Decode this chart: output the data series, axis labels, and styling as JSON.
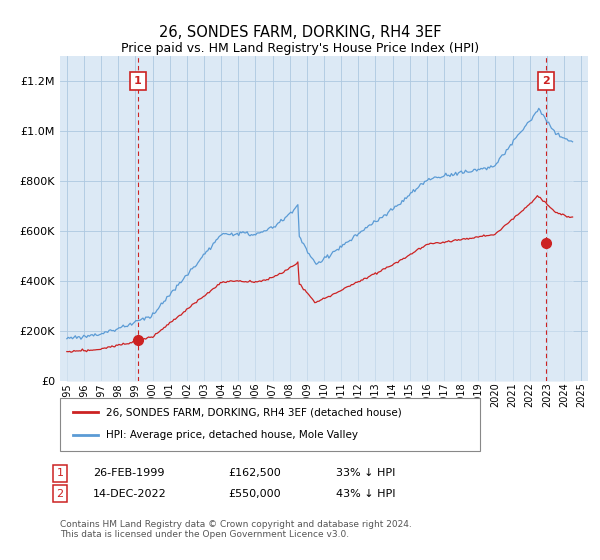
{
  "title": "26, SONDES FARM, DORKING, RH4 3EF",
  "subtitle": "Price paid vs. HM Land Registry's House Price Index (HPI)",
  "legend_line1": "26, SONDES FARM, DORKING, RH4 3EF (detached house)",
  "legend_line2": "HPI: Average price, detached house, Mole Valley",
  "annotation1_label": "1",
  "annotation1_date": "26-FEB-1999",
  "annotation1_price": "£162,500",
  "annotation1_note": "33% ↓ HPI",
  "annotation2_label": "2",
  "annotation2_date": "14-DEC-2022",
  "annotation2_price": "£550,000",
  "annotation2_note": "43% ↓ HPI",
  "footer": "Contains HM Land Registry data © Crown copyright and database right 2024.\nThis data is licensed under the Open Government Licence v3.0.",
  "hpi_color": "#5b9bd5",
  "hpi_fill": "#dce9f5",
  "price_color": "#cc2222",
  "vline_color": "#cc2222",
  "background_color": "#ffffff",
  "plot_bg_color": "#dce9f5",
  "grid_color": "#adc8e0",
  "ylim": [
    0,
    1300000
  ],
  "xlim_left": 1994.6,
  "xlim_right": 2025.4,
  "marker1_x": 1999.15,
  "marker1_y": 162500,
  "marker2_x": 2022.95,
  "marker2_y": 550000
}
